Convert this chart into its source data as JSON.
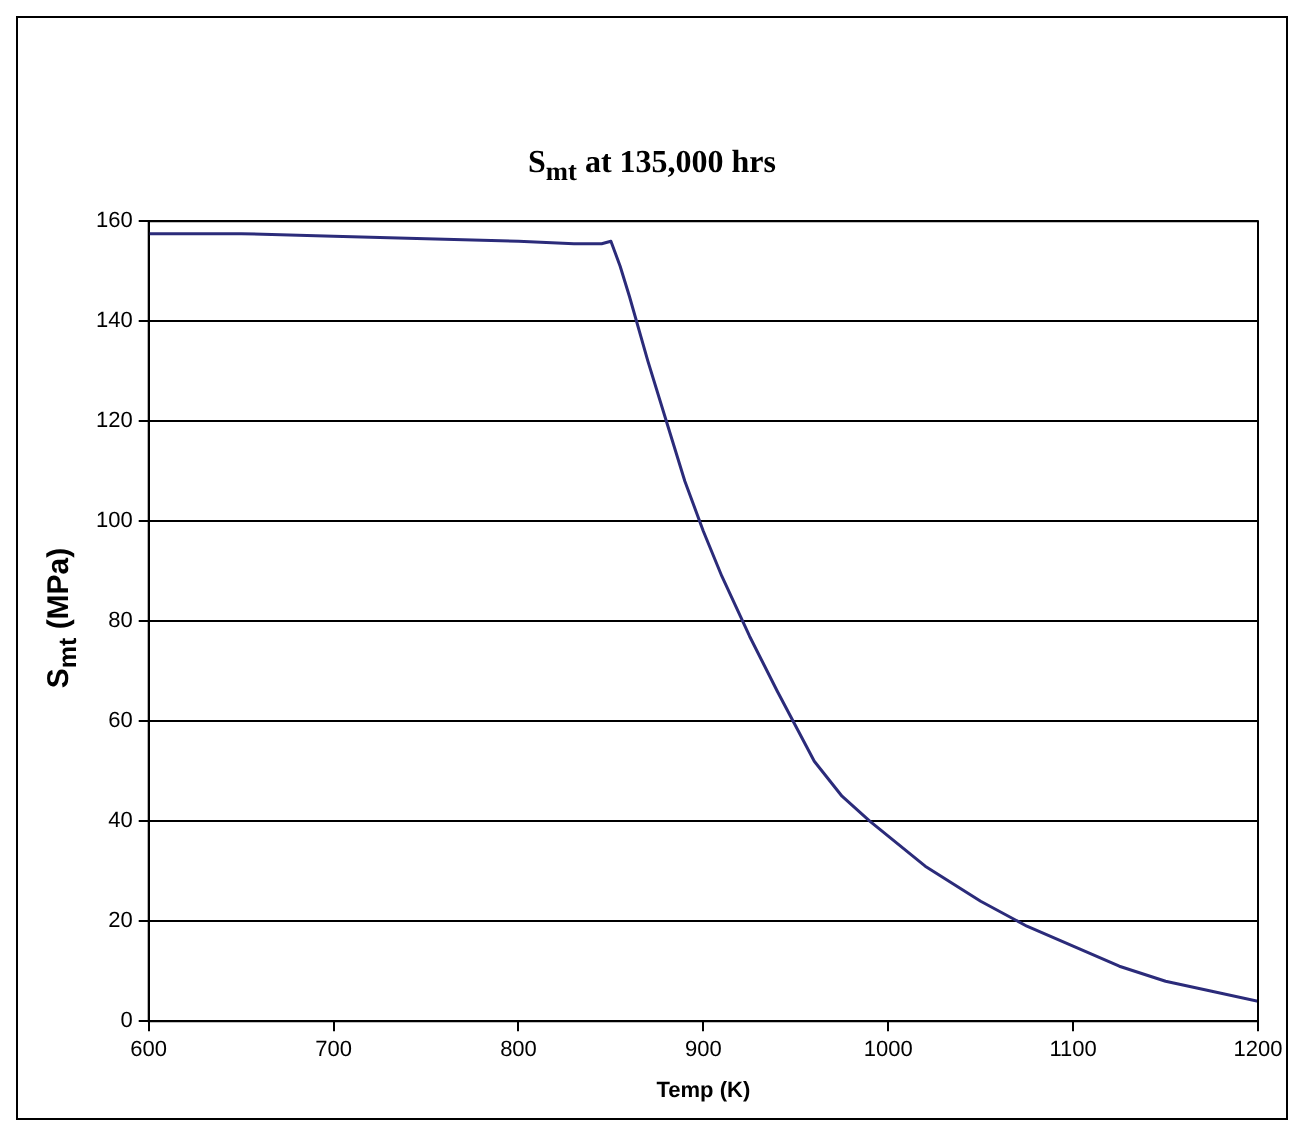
{
  "chart_data": {
    "type": "line",
    "title": "S$_{mt}$ at 135,000 hrs",
    "xlabel": "Temp (K)",
    "ylabel": "S$_{mt}$ (MPa)",
    "series": [
      {
        "color": "#2b2b7a",
        "x": [
          600,
          650,
          700,
          750,
          800,
          830,
          845,
          850,
          855,
          860,
          870,
          880,
          890,
          900,
          910,
          925,
          940,
          950,
          960,
          975,
          990,
          1000,
          1020,
          1050,
          1075,
          1100,
          1125,
          1150,
          1175,
          1200
        ],
        "values": [
          157.5,
          157.5,
          157,
          156.5,
          156,
          155.5,
          155.5,
          156,
          151,
          145,
          132,
          120,
          108,
          98,
          89,
          77,
          66,
          59,
          52,
          45,
          40,
          37,
          31,
          24,
          19,
          15,
          11,
          8,
          6,
          4
        ]
      }
    ],
    "xlim": [
      600,
      1200
    ],
    "xticks": [
      600,
      700,
      800,
      900,
      1000,
      1100,
      1200
    ],
    "ylim": [
      0,
      160
    ],
    "yticks": [
      0,
      20,
      40,
      60,
      80,
      100,
      120,
      140,
      160
    ],
    "grid": "y",
    "legend": false,
    "marker": "none",
    "line_style": "solid"
  }
}
